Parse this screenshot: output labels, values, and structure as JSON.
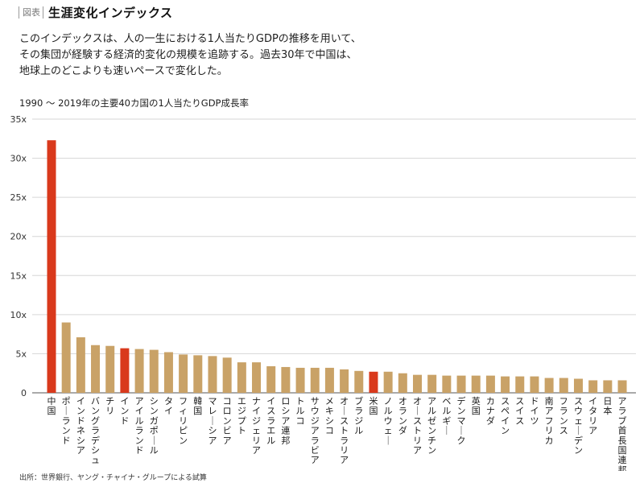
{
  "header": {
    "tag": "図表",
    "title": "生涯変化インデックス"
  },
  "description": [
    "このインデックスは、人の一生における1人当たりGDPの推移を用いて、",
    "その集団が経験する経済的変化の規模を追跡する。過去30年で中国は、",
    "地球上のどこよりも速いペースで変化した。"
  ],
  "chart_title": "1990 ～ 2019年の主要40カ国の1人当たりGDP成長率",
  "source": "出所：世界銀行、ヤング・チャイナ・グループによる試算",
  "colors": {
    "bar": "#c9a267",
    "highlight": "#d9391c",
    "grid": "#d6d6d6",
    "axis": "#555555"
  },
  "chart_data": {
    "type": "bar",
    "title": "1990 ～ 2019年の主要40カ国の1人当たりGDP成長率",
    "xlabel": "",
    "ylabel": "",
    "ylim": [
      0,
      35
    ],
    "yticks": [
      "0",
      "5x",
      "10x",
      "15x",
      "20x",
      "25x",
      "30x",
      "35x"
    ],
    "grid": true,
    "highlighted": [
      "中国",
      "インド",
      "米国"
    ],
    "categories": [
      "中国",
      "ポーランド",
      "インドネシア",
      "バングラデシュ",
      "チリ",
      "インド",
      "アイルランド",
      "シンガポール",
      "タイ",
      "フィリピン",
      "韓国",
      "マレーシア",
      "コロンビア",
      "エジプト",
      "ナイジェリア",
      "イスラエル",
      "ロシア連邦",
      "トルコ",
      "サウジアラビア",
      "メキシコ",
      "オーストラリア",
      "ブラジル",
      "米国",
      "ノルウェー",
      "オランダ",
      "オーストリア",
      "アルゼンチン",
      "ベルギー",
      "デンマーク",
      "英国",
      "カナダ",
      "スペイン",
      "スイス",
      "ドイツ",
      "南アフリカ",
      "フランス",
      "スウェーデン",
      "イタリア",
      "日本",
      "アラブ首長国連邦"
    ],
    "values": [
      32.3,
      9.0,
      7.1,
      6.1,
      6.0,
      5.7,
      5.6,
      5.5,
      5.2,
      4.9,
      4.8,
      4.7,
      4.5,
      3.9,
      3.9,
      3.4,
      3.3,
      3.2,
      3.2,
      3.2,
      3.0,
      2.8,
      2.7,
      2.7,
      2.5,
      2.3,
      2.3,
      2.2,
      2.2,
      2.2,
      2.2,
      2.1,
      2.1,
      2.1,
      1.9,
      1.9,
      1.8,
      1.6,
      1.6,
      1.6
    ]
  }
}
